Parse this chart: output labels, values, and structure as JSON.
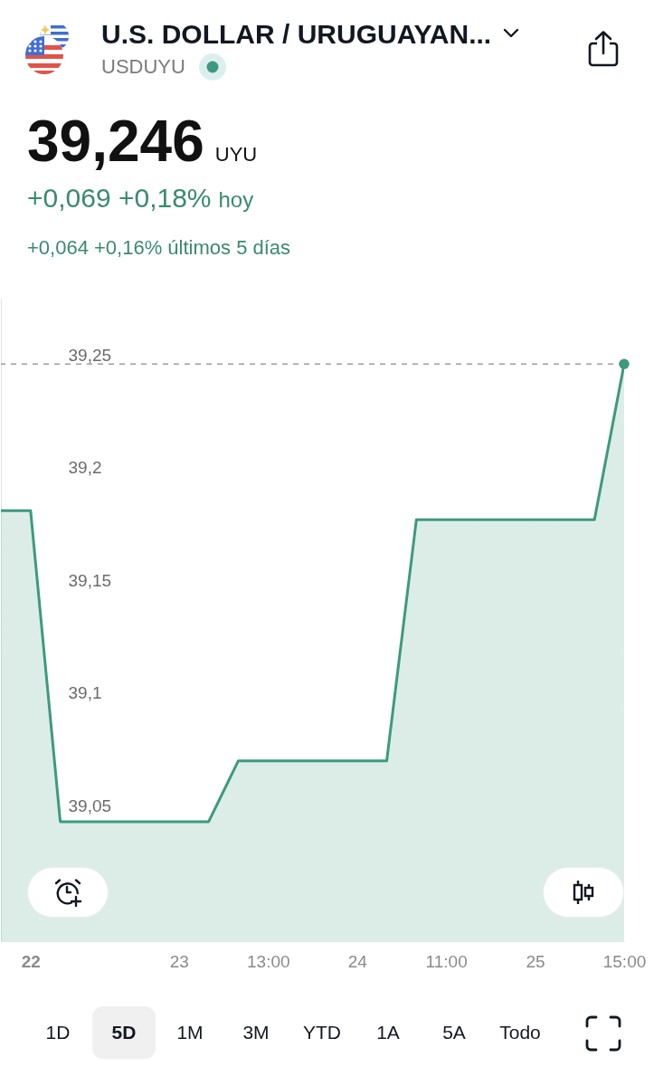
{
  "chart_data": {
    "type": "area",
    "title": "U.S. DOLLAR / URUGUAYAN...",
    "subtitle": "USDUYU",
    "annotations": [
      "39,246",
      "UYU",
      "+0,069 +0,18%",
      "hoy",
      "+0,064 +0,16% últimos 5 días",
      "1D",
      "5D",
      "1M",
      "3M",
      "YTD",
      "1A",
      "5A",
      "Todo"
    ],
    "categories": [
      null,
      "22",
      null,
      null,
      null,
      null,
      "23",
      null,
      null,
      "13:00",
      null,
      null,
      "24",
      null,
      null,
      "11:00",
      null,
      null,
      "25",
      null,
      null,
      "15:00"
    ],
    "series": [
      {
        "color": "#3d9a7e",
        "values": [
          39.181,
          39.181,
          39.043,
          39.043,
          39.043,
          39.043,
          39.043,
          39.043,
          39.07,
          39.07,
          39.07,
          39.07,
          39.07,
          39.07,
          39.177,
          39.177,
          39.177,
          39.177,
          39.177,
          39.177,
          39.177,
          39.246
        ]
      },
      {
        "type": "scatter",
        "color": "#3d9a7e",
        "marker": "circle",
        "values": [
          null,
          null,
          null,
          null,
          null,
          null,
          null,
          null,
          null,
          null,
          null,
          null,
          null,
          null,
          null,
          null,
          null,
          null,
          null,
          null,
          null,
          39.246
        ]
      }
    ],
    "ylim": [
      38.99,
      39.275
    ],
    "yticks": [
      {
        "value": 39.05,
        "label": "39,05"
      },
      {
        "value": 39.1,
        "label": "39,1"
      },
      {
        "value": 39.15,
        "label": "39,15"
      },
      {
        "value": 39.2,
        "label": "39,2"
      },
      {
        "value": 39.25,
        "label": "39,25"
      }
    ],
    "ref_lines": [
      {
        "axis": "y",
        "value": 39.246,
        "color": "#9e9e9e",
        "line_style": "dashed"
      }
    ]
  }
}
